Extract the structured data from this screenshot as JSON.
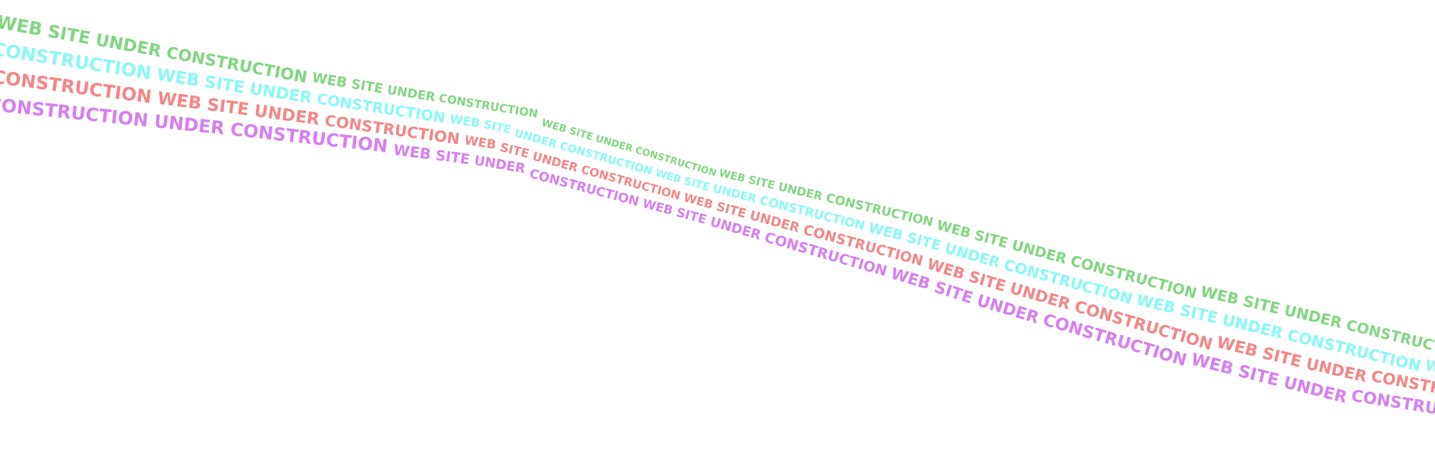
{
  "page": {
    "background_color": "#FFFFFF"
  },
  "banner": {
    "phrase": "WEB SITE UNDER CONSTRUCTION",
    "repeat_phrase_times": 14,
    "lines": [
      {
        "name": "banner-line-1",
        "color": "#82D682",
        "leading_words": "",
        "visible_start_text": "WEB SITE UNDER CONSTRUCTION WEB SITE UNDER CONSTRUCTION"
      },
      {
        "name": "banner-line-2",
        "color": "#8BF7F7",
        "leading_words": "CONSTRUCTION",
        "visible_start_text": "CONSTRUCTION WEB SITE UNDER CONSTRUCTION WEB SITE UNDER"
      },
      {
        "name": "banner-line-3",
        "color": "#F38787",
        "leading_words": "CONSTRUCTION",
        "visible_start_text": "CONSTRUCTION WEB SITE UNDER CONSTRUCTION WEB SITE UNDER"
      },
      {
        "name": "banner-line-4",
        "color": "#D77FF0",
        "leading_words": "CONSTRUCTION UNDER CONSTRUCTION",
        "visible_start_text": "CONSTRUCTION UNDER CONSTRUCTION WEB SITE UNDER CONSTRUCTION"
      }
    ]
  }
}
